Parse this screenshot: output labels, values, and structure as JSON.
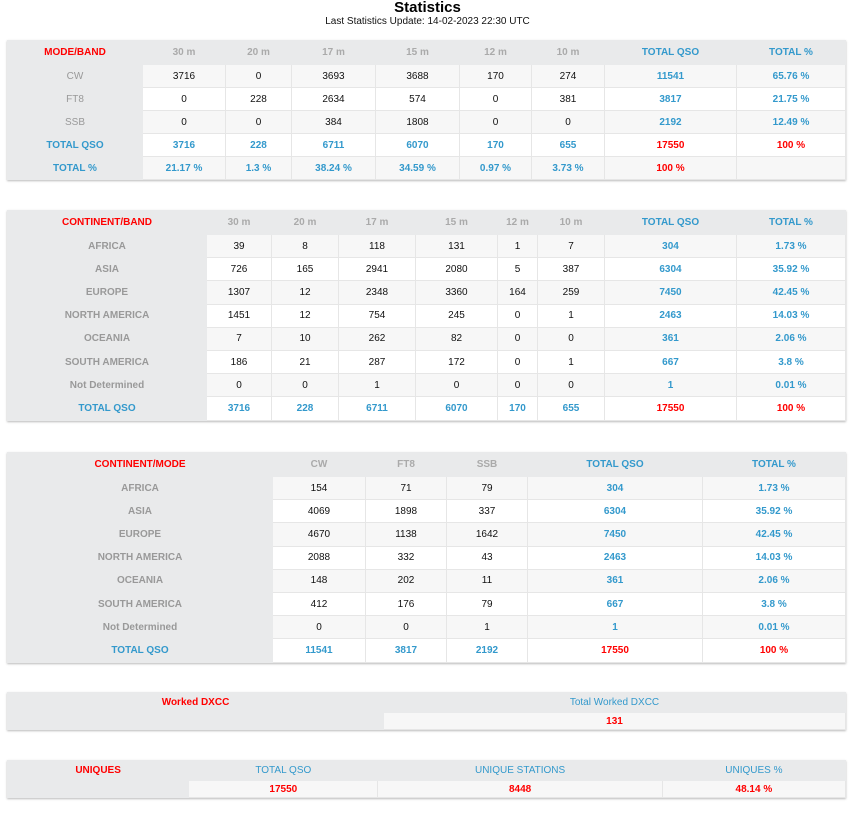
{
  "header": {
    "title": "Statistics",
    "update": "Last Statistics Update: 14-02-2023 22:30 UTC"
  },
  "tables": [
    {
      "id": "mode-band",
      "headers": [
        "MODE/BAND",
        "30 m",
        "20 m",
        "17 m",
        "15 m",
        "12 m",
        "10 m",
        "TOTAL QSO",
        "TOTAL %"
      ],
      "rows": [
        {
          "type": "data",
          "cells": [
            "CW",
            "3716",
            "0",
            "3693",
            "3688",
            "170",
            "274",
            "11541",
            "65.76 %"
          ]
        },
        {
          "type": "data",
          "cells": [
            "FT8",
            "0",
            "228",
            "2634",
            "574",
            "0",
            "381",
            "3817",
            "21.75 %"
          ]
        },
        {
          "type": "data",
          "cells": [
            "SSB",
            "0",
            "0",
            "384",
            "1808",
            "0",
            "0",
            "2192",
            "12.49 %"
          ]
        },
        {
          "type": "total",
          "cells": [
            "TOTAL QSO",
            "3716",
            "228",
            "6711",
            "6070",
            "170",
            "655",
            "17550",
            "100 %"
          ]
        },
        {
          "type": "pct",
          "cells": [
            "TOTAL %",
            "21.17 %",
            "1.3 %",
            "38.24 %",
            "34.59 %",
            "0.97 %",
            "3.73 %",
            "100 %",
            ""
          ]
        }
      ]
    },
    {
      "id": "continent-band",
      "headers": [
        "CONTINENT/BAND",
        "30 m",
        "20 m",
        "17 m",
        "15 m",
        "12 m",
        "10 m",
        "TOTAL QSO",
        "TOTAL %"
      ],
      "rows": [
        {
          "type": "data",
          "cells": [
            "AFRICA",
            "39",
            "8",
            "118",
            "131",
            "1",
            "7",
            "304",
            "1.73 %"
          ]
        },
        {
          "type": "data",
          "cells": [
            "ASIA",
            "726",
            "165",
            "2941",
            "2080",
            "5",
            "387",
            "6304",
            "35.92 %"
          ]
        },
        {
          "type": "data",
          "cells": [
            "EUROPE",
            "1307",
            "12",
            "2348",
            "3360",
            "164",
            "259",
            "7450",
            "42.45 %"
          ]
        },
        {
          "type": "data",
          "cells": [
            "NORTH AMERICA",
            "1451",
            "12",
            "754",
            "245",
            "0",
            "1",
            "2463",
            "14.03 %"
          ]
        },
        {
          "type": "data",
          "cells": [
            "OCEANIA",
            "7",
            "10",
            "262",
            "82",
            "0",
            "0",
            "361",
            "2.06 %"
          ]
        },
        {
          "type": "data",
          "cells": [
            "SOUTH AMERICA",
            "186",
            "21",
            "287",
            "172",
            "0",
            "1",
            "667",
            "3.8 %"
          ]
        },
        {
          "type": "data",
          "cells": [
            "Not Determined",
            "0",
            "0",
            "1",
            "0",
            "0",
            "0",
            "1",
            "0.01 %"
          ]
        },
        {
          "type": "total",
          "cells": [
            "TOTAL QSO",
            "3716",
            "228",
            "6711",
            "6070",
            "170",
            "655",
            "17550",
            "100 %"
          ]
        }
      ]
    },
    {
      "id": "continent-mode",
      "headers": [
        "CONTINENT/MODE",
        "CW",
        "FT8",
        "SSB",
        "TOTAL QSO",
        "TOTAL %"
      ],
      "rows": [
        {
          "type": "data",
          "cells": [
            "AFRICA",
            "154",
            "71",
            "79",
            "304",
            "1.73 %"
          ]
        },
        {
          "type": "data",
          "cells": [
            "ASIA",
            "4069",
            "1898",
            "337",
            "6304",
            "35.92 %"
          ]
        },
        {
          "type": "data",
          "cells": [
            "EUROPE",
            "4670",
            "1138",
            "1642",
            "7450",
            "42.45 %"
          ]
        },
        {
          "type": "data",
          "cells": [
            "NORTH AMERICA",
            "2088",
            "332",
            "43",
            "2463",
            "14.03 %"
          ]
        },
        {
          "type": "data",
          "cells": [
            "OCEANIA",
            "148",
            "202",
            "11",
            "361",
            "2.06 %"
          ]
        },
        {
          "type": "data",
          "cells": [
            "SOUTH AMERICA",
            "412",
            "176",
            "79",
            "667",
            "3.8 %"
          ]
        },
        {
          "type": "data",
          "cells": [
            "Not Determined",
            "0",
            "0",
            "1",
            "1",
            "0.01 %"
          ]
        },
        {
          "type": "total",
          "cells": [
            "TOTAL QSO",
            "11541",
            "3817",
            "2192",
            "17550",
            "100 %"
          ]
        }
      ]
    },
    {
      "id": "worked-dxcc",
      "headers": [
        "Worked DXCC",
        "Total Worked DXCC"
      ],
      "rows": [
        {
          "type": "single",
          "cells": [
            "",
            "131"
          ]
        }
      ]
    },
    {
      "id": "uniques",
      "headers": [
        "UNIQUES",
        "TOTAL QSO",
        "UNIQUE STATIONS",
        "UNIQUES %"
      ],
      "rows": [
        {
          "type": "single",
          "cells": [
            "",
            "17550",
            "8448",
            "48.14 %"
          ]
        }
      ]
    }
  ],
  "colors": {
    "accent_blue": "#3399cc",
    "accent_red": "#ff0000",
    "label_gray": "#999999"
  }
}
